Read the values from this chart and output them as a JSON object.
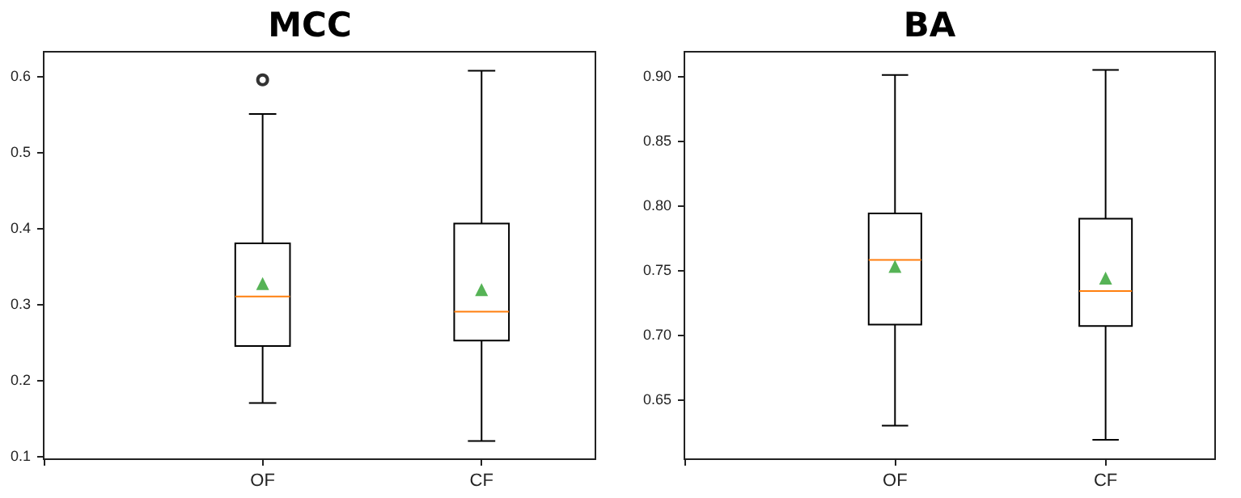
{
  "chart_data": [
    {
      "type": "box",
      "title": "MCC",
      "categories": [
        null,
        "OF",
        "CF"
      ],
      "ylim": [
        0.096,
        0.632
      ],
      "yticks": [
        0.1,
        0.2,
        0.3,
        0.4,
        0.5,
        0.6
      ],
      "grid": false,
      "boxes": [
        null,
        {
          "low": 0.17,
          "q1": 0.245,
          "median": 0.31,
          "q3": 0.38,
          "high": 0.55,
          "mean": 0.327,
          "outliers": [
            0.595
          ]
        },
        {
          "low": 0.12,
          "q1": 0.252,
          "median": 0.29,
          "q3": 0.406,
          "high": 0.607,
          "mean": 0.319
        }
      ]
    },
    {
      "type": "box",
      "title": "BA",
      "categories": [
        null,
        "OF",
        "CF"
      ],
      "ylim": [
        0.604,
        0.919
      ],
      "yticks": [
        {
          "value": 0.65,
          "label": "0.65"
        },
        {
          "value": 0.7,
          "label": "0.70"
        },
        {
          "value": 0.75,
          "label": "0.75"
        },
        {
          "value": 0.8,
          "label": "0.80"
        },
        {
          "value": 0.85,
          "label": "0.85"
        },
        {
          "value": 0.9,
          "label": "0.90"
        }
      ],
      "grid": false,
      "boxes": [
        null,
        {
          "low": 0.63,
          "q1": 0.708,
          "median": 0.758,
          "q3": 0.794,
          "high": 0.901,
          "mean": 0.753
        },
        {
          "low": 0.619,
          "q1": 0.707,
          "median": 0.734,
          "q3": 0.79,
          "high": 0.905,
          "mean": 0.744
        }
      ]
    }
  ]
}
